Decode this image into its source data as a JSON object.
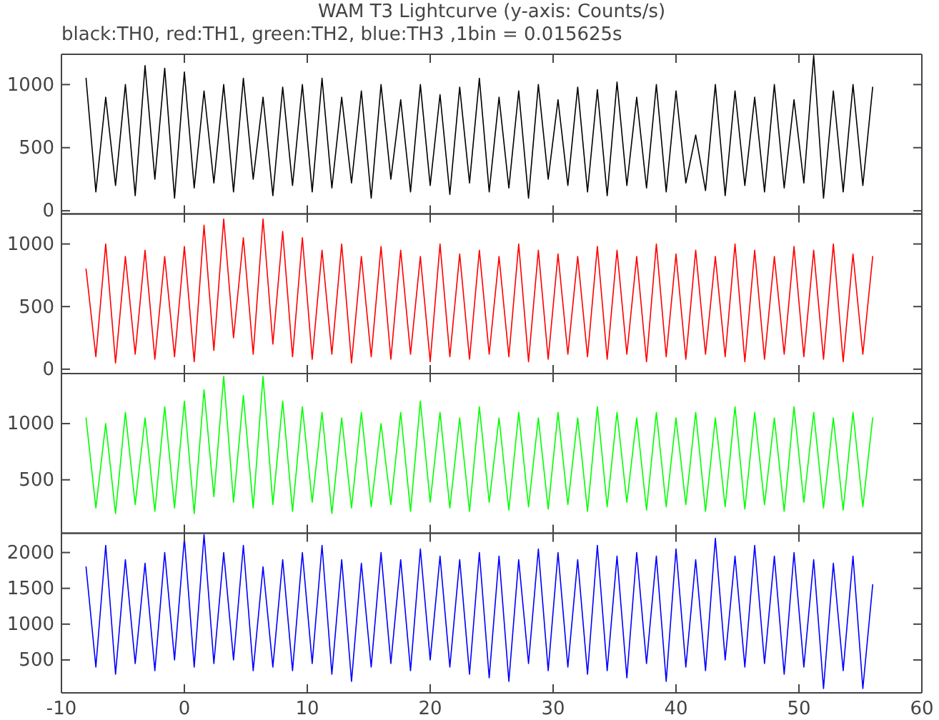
{
  "chart_data": [
    {
      "type": "line",
      "title": "WAM T3 Lightcurve (y-axis: Counts/s)",
      "subtitle": "black:TH0, red:TH1, green:TH2, blue:TH3 ,1bin = 0.015625s",
      "tick_labels": "y",
      "xlim": [
        -10,
        60
      ],
      "xticks": [
        -10,
        0,
        10,
        20,
        30,
        40,
        50,
        60
      ],
      "ylim": [
        -25,
        1240
      ],
      "yticks": [
        0,
        500,
        1000
      ],
      "color": "#000000",
      "x": [
        -8,
        -7.2,
        -6.4,
        -5.6,
        -4.8,
        -4,
        -3.2,
        -2.4,
        -1.6,
        -0.8,
        0,
        0.8,
        1.6,
        2.4,
        3.2,
        4,
        4.8,
        5.6,
        6.4,
        7.2,
        8,
        8.8,
        9.6,
        10.4,
        11.2,
        12,
        12.8,
        13.6,
        14.4,
        15.2,
        16,
        16.8,
        17.6,
        18.4,
        19.2,
        20,
        20.8,
        21.6,
        22.4,
        23.2,
        24,
        24.8,
        25.6,
        26.4,
        27.2,
        28,
        28.8,
        29.6,
        30.4,
        31.2,
        32,
        32.8,
        33.6,
        34.4,
        35.2,
        36,
        36.8,
        37.6,
        38.4,
        39.2,
        40,
        40.8,
        41.6,
        42.4,
        43.2,
        44,
        44.8,
        45.6,
        46.4,
        47.2,
        48,
        48.8,
        49.6,
        50.4,
        51.2,
        52,
        52.8,
        53.6,
        54.4,
        55.2,
        56
      ],
      "values": [
        1050,
        150,
        900,
        200,
        1000,
        120,
        1150,
        250,
        1130,
        100,
        1100,
        180,
        950,
        220,
        1000,
        150,
        1050,
        250,
        900,
        120,
        980,
        200,
        1000,
        150,
        1050,
        180,
        900,
        220,
        950,
        100,
        1000,
        250,
        880,
        150,
        1000,
        200,
        920,
        130,
        980,
        220,
        1050,
        150,
        900,
        180,
        950,
        100,
        1000,
        250,
        880,
        200,
        980,
        150,
        960,
        120,
        1020,
        200,
        900,
        180,
        1000,
        150,
        950,
        220,
        600,
        160,
        1000,
        120,
        950,
        200,
        900,
        150,
        1000,
        180,
        880,
        220,
        1230,
        100,
        950,
        150,
        1000,
        200,
        980
      ]
    },
    {
      "type": "line",
      "tick_labels": "y",
      "xlim": [
        -10,
        60
      ],
      "xticks": [
        -10,
        0,
        10,
        20,
        30,
        40,
        50,
        60
      ],
      "ylim": [
        -35,
        1240
      ],
      "yticks": [
        0,
        500,
        1000
      ],
      "color": "#ff0000",
      "x": [
        -8,
        -7.2,
        -6.4,
        -5.6,
        -4.8,
        -4,
        -3.2,
        -2.4,
        -1.6,
        -0.8,
        0,
        0.8,
        1.6,
        2.4,
        3.2,
        4,
        4.8,
        5.6,
        6.4,
        7.2,
        8,
        8.8,
        9.6,
        10.4,
        11.2,
        12,
        12.8,
        13.6,
        14.4,
        15.2,
        16,
        16.8,
        17.6,
        18.4,
        19.2,
        20,
        20.8,
        21.6,
        22.4,
        23.2,
        24,
        24.8,
        25.6,
        26.4,
        27.2,
        28,
        28.8,
        29.6,
        30.4,
        31.2,
        32,
        32.8,
        33.6,
        34.4,
        35.2,
        36,
        36.8,
        37.6,
        38.4,
        39.2,
        40,
        40.8,
        41.6,
        42.4,
        43.2,
        44,
        44.8,
        45.6,
        46.4,
        47.2,
        48,
        48.8,
        49.6,
        50.4,
        51.2,
        52,
        52.8,
        53.6,
        54.4,
        55.2,
        56
      ],
      "values": [
        800,
        100,
        1000,
        50,
        900,
        120,
        950,
        80,
        900,
        100,
        980,
        60,
        1150,
        150,
        1200,
        250,
        1050,
        120,
        1200,
        200,
        1100,
        100,
        1050,
        80,
        950,
        120,
        1000,
        50,
        900,
        100,
        980,
        80,
        950,
        120,
        900,
        60,
        1000,
        100,
        920,
        80,
        950,
        120,
        900,
        100,
        1000,
        60,
        950,
        80,
        920,
        120,
        900,
        100,
        980,
        80,
        950,
        120,
        900,
        60,
        1000,
        100,
        920,
        80,
        950,
        120,
        900,
        100,
        1000,
        60,
        950,
        80,
        900,
        120,
        980,
        100,
        950,
        80,
        1000,
        60,
        920,
        120,
        900
      ]
    },
    {
      "type": "line",
      "tick_labels": "y",
      "xlim": [
        -10,
        60
      ],
      "xticks": [
        -10,
        0,
        10,
        20,
        30,
        40,
        50,
        60
      ],
      "ylim": [
        25,
        1445
      ],
      "yticks": [
        500,
        1000
      ],
      "color": "#00ff00",
      "x": [
        -8,
        -7.2,
        -6.4,
        -5.6,
        -4.8,
        -4,
        -3.2,
        -2.4,
        -1.6,
        -0.8,
        0,
        0.8,
        1.6,
        2.4,
        3.2,
        4,
        4.8,
        5.6,
        6.4,
        7.2,
        8,
        8.8,
        9.6,
        10.4,
        11.2,
        12,
        12.8,
        13.6,
        14.4,
        15.2,
        16,
        16.8,
        17.6,
        18.4,
        19.2,
        20,
        20.8,
        21.6,
        22.4,
        23.2,
        24,
        24.8,
        25.6,
        26.4,
        27.2,
        28,
        28.8,
        29.6,
        30.4,
        31.2,
        32,
        32.8,
        33.6,
        34.4,
        35.2,
        36,
        36.8,
        37.6,
        38.4,
        39.2,
        40,
        40.8,
        41.6,
        42.4,
        43.2,
        44,
        44.8,
        45.6,
        46.4,
        47.2,
        48,
        48.8,
        49.6,
        50.4,
        51.2,
        52,
        52.8,
        53.6,
        54.4,
        55.2,
        56
      ],
      "values": [
        1050,
        250,
        1000,
        200,
        1100,
        280,
        1050,
        220,
        1150,
        250,
        1200,
        200,
        1300,
        350,
        1420,
        300,
        1250,
        250,
        1420,
        280,
        1200,
        220,
        1150,
        300,
        1100,
        200,
        1050,
        250,
        1100,
        260,
        1000,
        280,
        1100,
        220,
        1200,
        300,
        1100,
        250,
        1050,
        220,
        1150,
        300,
        1050,
        230,
        1100,
        260,
        1050,
        240,
        1100,
        280,
        1050,
        220,
        1150,
        260,
        1100,
        300,
        1050,
        230,
        1100,
        260,
        1050,
        280,
        1100,
        220,
        1050,
        260,
        1150,
        240,
        1100,
        280,
        1050,
        220,
        1150,
        300,
        1100,
        250,
        1050,
        230,
        1100,
        260,
        1050
      ]
    },
    {
      "type": "line",
      "xlim": [
        -10,
        60
      ],
      "xticks": [
        -10,
        0,
        10,
        20,
        30,
        40,
        50,
        60
      ],
      "ylim": [
        40,
        2270
      ],
      "yticks": [
        500,
        1000,
        1500,
        2000
      ],
      "color": "#0000ff",
      "x": [
        -8,
        -7.2,
        -6.4,
        -5.6,
        -4.8,
        -4,
        -3.2,
        -2.4,
        -1.6,
        -0.8,
        0,
        0.8,
        1.6,
        2.4,
        3.2,
        4,
        4.8,
        5.6,
        6.4,
        7.2,
        8,
        8.8,
        9.6,
        10.4,
        11.2,
        12,
        12.8,
        13.6,
        14.4,
        15.2,
        16,
        16.8,
        17.6,
        18.4,
        19.2,
        20,
        20.8,
        21.6,
        22.4,
        23.2,
        24,
        24.8,
        25.6,
        26.4,
        27.2,
        28,
        28.8,
        29.6,
        30.4,
        31.2,
        32,
        32.8,
        33.6,
        34.4,
        35.2,
        36,
        36.8,
        37.6,
        38.4,
        39.2,
        40,
        40.8,
        41.6,
        42.4,
        43.2,
        44,
        44.8,
        45.6,
        46.4,
        47.2,
        48,
        48.8,
        49.6,
        50.4,
        51.2,
        52,
        52.8,
        53.6,
        54.4,
        55.2,
        56
      ],
      "values": [
        1800,
        400,
        2100,
        300,
        1900,
        450,
        1850,
        350,
        2000,
        500,
        2200,
        400,
        2250,
        450,
        2000,
        500,
        2100,
        350,
        1800,
        400,
        1900,
        350,
        2000,
        450,
        2100,
        300,
        1900,
        200,
        1850,
        400,
        2000,
        450,
        1900,
        350,
        2050,
        500,
        1950,
        400,
        1900,
        300,
        2000,
        250,
        1950,
        200,
        1900,
        450,
        2050,
        350,
        2000,
        400,
        1900,
        300,
        2100,
        350,
        1950,
        250,
        2000,
        450,
        1950,
        200,
        2050,
        400,
        1900,
        350,
        2200,
        500,
        1950,
        400,
        2100,
        450,
        1950,
        300,
        2000,
        400,
        1900,
        100,
        1850,
        350,
        1950,
        100,
        1550
      ]
    }
  ]
}
